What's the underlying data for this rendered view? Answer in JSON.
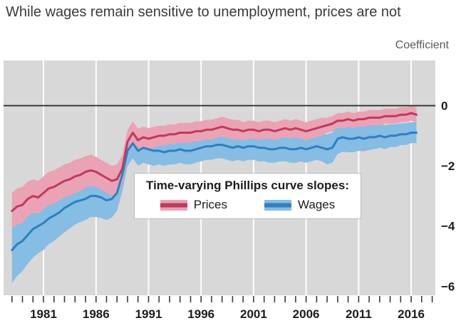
{
  "chart_data": {
    "type": "line",
    "title": "While wages remain sensitive to unemployment, prices are not",
    "right_axis_label": "Coefficient",
    "xlim": [
      1977.2,
      2018.3
    ],
    "ylim": [
      -6.3,
      1.5
    ],
    "x_major_ticks": [
      1981,
      1986,
      1991,
      1996,
      2001,
      2006,
      2011,
      2016
    ],
    "x_minor_tick_step": 1,
    "y_ticks": [
      {
        "v": 0,
        "label": "0"
      },
      {
        "v": -2,
        "label": "−2"
      },
      {
        "v": -4,
        "label": "−4"
      },
      {
        "v": -6,
        "label": "−6"
      }
    ],
    "zero_line": true,
    "grid": "vertical-white",
    "legend_position": "center",
    "colors": {
      "plot_bg": "#d8d8d8",
      "grid": "#ffffff",
      "zero_line": "#262626",
      "tick": "#3c3c3c",
      "axis_text": "#1c1c1c"
    },
    "legend": {
      "title": "Time-varying Phillips curve slopes:",
      "entries": [
        {
          "label": "Prices",
          "line": "#c03a5a",
          "band": "#e9a3b4"
        },
        {
          "label": "Wages",
          "line": "#2f7fc1",
          "band": "#85bde4"
        }
      ]
    },
    "x": [
      1978,
      1978.5,
      1979,
      1979.5,
      1980,
      1980.5,
      1981,
      1981.5,
      1982,
      1982.5,
      1983,
      1983.5,
      1984,
      1984.5,
      1985,
      1985.5,
      1986,
      1986.5,
      1987,
      1987.5,
      1988,
      1988.5,
      1989,
      1989.5,
      1990,
      1990.5,
      1991,
      1991.5,
      1992,
      1992.5,
      1993,
      1993.5,
      1994,
      1994.5,
      1995,
      1995.5,
      1996,
      1996.5,
      1997,
      1997.5,
      1998,
      1998.5,
      1999,
      1999.5,
      2000,
      2000.5,
      2001,
      2001.5,
      2002,
      2002.5,
      2003,
      2003.5,
      2004,
      2004.5,
      2005,
      2005.5,
      2006,
      2006.5,
      2007,
      2007.5,
      2008,
      2008.5,
      2009,
      2009.5,
      2010,
      2010.5,
      2011,
      2011.5,
      2012,
      2012.5,
      2013,
      2013.5,
      2014,
      2014.5,
      2015,
      2015.5,
      2016,
      2016.5
    ],
    "series": [
      {
        "name": "Prices",
        "line_color": "#c03a5a",
        "band_color": "#e9a3b4",
        "y": [
          -3.5,
          -3.35,
          -3.3,
          -3.1,
          -3.0,
          -3.05,
          -2.9,
          -2.75,
          -2.7,
          -2.6,
          -2.5,
          -2.45,
          -2.35,
          -2.3,
          -2.2,
          -2.15,
          -2.2,
          -2.3,
          -2.4,
          -2.5,
          -2.45,
          -2.1,
          -1.2,
          -0.9,
          -1.15,
          -1.05,
          -1.1,
          -1.05,
          -1.0,
          -1.0,
          -0.95,
          -0.95,
          -0.9,
          -0.9,
          -0.9,
          -0.85,
          -0.85,
          -0.8,
          -0.8,
          -0.75,
          -0.7,
          -0.75,
          -0.8,
          -0.8,
          -0.85,
          -0.8,
          -0.8,
          -0.85,
          -0.8,
          -0.8,
          -0.85,
          -0.8,
          -0.75,
          -0.8,
          -0.75,
          -0.8,
          -0.85,
          -0.8,
          -0.75,
          -0.7,
          -0.65,
          -0.6,
          -0.5,
          -0.5,
          -0.45,
          -0.5,
          -0.45,
          -0.45,
          -0.4,
          -0.4,
          -0.4,
          -0.35,
          -0.35,
          -0.35,
          -0.3,
          -0.3,
          -0.25,
          -0.3
        ],
        "hw": [
          0.6,
          0.6,
          0.6,
          0.58,
          0.55,
          0.55,
          0.55,
          0.55,
          0.55,
          0.55,
          0.55,
          0.55,
          0.55,
          0.55,
          0.52,
          0.52,
          0.5,
          0.5,
          0.5,
          0.5,
          0.5,
          0.45,
          0.4,
          0.38,
          0.38,
          0.36,
          0.35,
          0.35,
          0.33,
          0.33,
          0.33,
          0.33,
          0.33,
          0.33,
          0.33,
          0.33,
          0.33,
          0.33,
          0.33,
          0.33,
          0.33,
          0.33,
          0.33,
          0.33,
          0.3,
          0.3,
          0.3,
          0.3,
          0.3,
          0.3,
          0.3,
          0.3,
          0.3,
          0.3,
          0.3,
          0.3,
          0.3,
          0.3,
          0.3,
          0.3,
          0.25,
          0.25,
          0.25,
          0.25,
          0.25,
          0.25,
          0.25,
          0.25,
          0.25,
          0.25,
          0.25,
          0.25,
          0.25,
          0.25,
          0.25,
          0.25,
          0.25,
          0.25
        ]
      },
      {
        "name": "Wages",
        "line_color": "#2f7fc1",
        "band_color": "#85bde4",
        "y": [
          -4.8,
          -4.6,
          -4.5,
          -4.3,
          -4.1,
          -4.0,
          -3.9,
          -3.75,
          -3.65,
          -3.55,
          -3.4,
          -3.3,
          -3.2,
          -3.15,
          -3.1,
          -3.0,
          -3.0,
          -3.05,
          -3.15,
          -3.1,
          -2.9,
          -2.3,
          -1.5,
          -1.25,
          -1.5,
          -1.4,
          -1.45,
          -1.5,
          -1.5,
          -1.55,
          -1.5,
          -1.5,
          -1.45,
          -1.5,
          -1.5,
          -1.45,
          -1.4,
          -1.35,
          -1.35,
          -1.3,
          -1.3,
          -1.35,
          -1.4,
          -1.35,
          -1.4,
          -1.35,
          -1.35,
          -1.4,
          -1.4,
          -1.45,
          -1.45,
          -1.4,
          -1.4,
          -1.45,
          -1.45,
          -1.4,
          -1.45,
          -1.4,
          -1.35,
          -1.4,
          -1.45,
          -1.4,
          -1.1,
          -1.05,
          -1.1,
          -1.1,
          -1.05,
          -1.1,
          -1.05,
          -1.05,
          -1.0,
          -1.05,
          -1.0,
          -1.0,
          -0.95,
          -0.95,
          -0.9,
          -0.9
        ],
        "hw": [
          1.1,
          1.05,
          1.0,
          0.95,
          0.95,
          0.9,
          0.9,
          0.85,
          0.85,
          0.8,
          0.8,
          0.78,
          0.75,
          0.72,
          0.7,
          0.7,
          0.7,
          0.68,
          0.65,
          0.62,
          0.6,
          0.55,
          0.5,
          0.5,
          0.5,
          0.5,
          0.5,
          0.5,
          0.45,
          0.45,
          0.45,
          0.45,
          0.45,
          0.45,
          0.45,
          0.45,
          0.45,
          0.45,
          0.45,
          0.45,
          0.45,
          0.45,
          0.45,
          0.45,
          0.45,
          0.45,
          0.45,
          0.45,
          0.45,
          0.45,
          0.45,
          0.45,
          0.45,
          0.45,
          0.45,
          0.45,
          0.45,
          0.45,
          0.45,
          0.45,
          0.5,
          0.5,
          0.5,
          0.48,
          0.45,
          0.45,
          0.45,
          0.42,
          0.42,
          0.4,
          0.4,
          0.4,
          0.38,
          0.38,
          0.36,
          0.36,
          0.35,
          0.35
        ]
      }
    ]
  }
}
